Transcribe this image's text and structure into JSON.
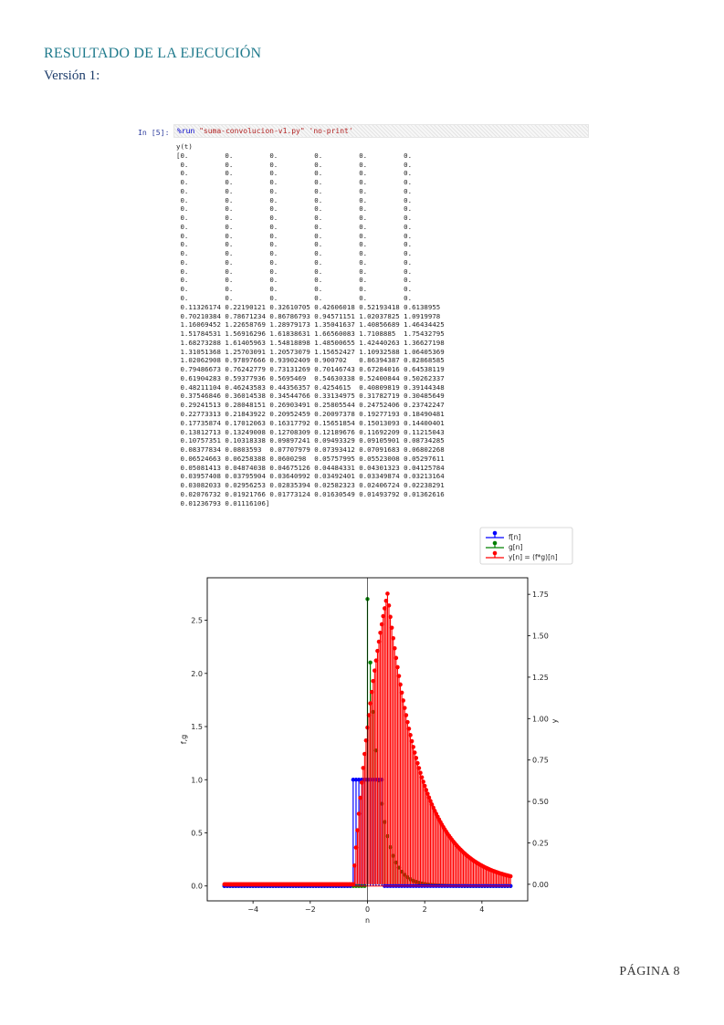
{
  "document": {
    "heading": "RESULTADO DE LA EJECUCIÓN",
    "subheading": "Versión 1:",
    "page_number": "PÁGINA 8"
  },
  "notebook": {
    "prompt": "In [5]:",
    "code": {
      "magic": "%run",
      "args": [
        "\"suma-convolucion-v1.py\"",
        "'no-print'"
      ]
    },
    "output_lines": [
      "y(t)",
      "[0.         0.         0.         0.         0.         0.",
      " 0.         0.         0.         0.         0.         0.",
      " 0.         0.         0.         0.         0.         0.",
      " 0.         0.         0.         0.         0.         0.",
      " 0.         0.         0.         0.         0.         0.",
      " 0.         0.         0.         0.         0.         0.",
      " 0.         0.         0.         0.         0.         0.",
      " 0.         0.         0.         0.         0.         0.",
      " 0.         0.         0.         0.         0.         0.",
      " 0.         0.         0.         0.         0.         0.",
      " 0.         0.         0.         0.         0.         0.",
      " 0.         0.         0.         0.         0.         0.",
      " 0.         0.         0.         0.         0.         0.",
      " 0.         0.         0.         0.         0.         0.",
      " 0.         0.         0.         0.         0.         0.",
      " 0.         0.         0.         0.         0.         0.",
      " 0.         0.         0.         0.         0.         0.",
      " 0.11326174 0.22190121 0.32610705 0.42606018 0.52193418 0.6138955",
      " 0.70210384 0.78671234 0.86786793 0.94571151 1.02037825 1.0919978",
      " 1.16069452 1.22658769 1.28979173 1.35041637 1.40856689 1.46434425",
      " 1.51784531 1.56916296 1.61838631 1.66560083 1.7108885  1.75432795",
      " 1.68273288 1.61405963 1.54818898 1.48500655 1.42440263 1.36627198",
      " 1.31051368 1.25703091 1.20573079 1.15652427 1.10932588 1.06405369",
      " 1.02062908 0.97897666 0.93902409 0.900702   0.86394387 0.82868585",
      " 0.79486673 0.76242779 0.73131269 0.70146743 0.67284016 0.64538119",
      " 0.61904283 0.59377936 0.5695469  0.54630338 0.52400844 0.50262337",
      " 0.48211104 0.46243583 0.44356357 0.4254615  0.40809819 0.39144348",
      " 0.37546846 0.36014538 0.34544766 0.33134975 0.31782719 0.30485649",
      " 0.29241513 0.28048151 0.26903491 0.25805544 0.24752406 0.23742247",
      " 0.22773313 0.21843922 0.20952459 0.20097378 0.19277193 0.18490481",
      " 0.17735874 0.17012063 0.16317792 0.15651854 0.15013093 0.14400401",
      " 0.13812713 0.13249008 0.12708309 0.12189676 0.11692209 0.11215043",
      " 0.10757351 0.10318338 0.09897241 0.09493329 0.09105901 0.08734285",
      " 0.08377834 0.0803593  0.07707979 0.07393412 0.07091683 0.06802268",
      " 0.06524663 0.06258388 0.0600298  0.05757995 0.05523008 0.05297611",
      " 0.05081413 0.04874038 0.04675126 0.04484331 0.04301323 0.04125784",
      " 0.03957408 0.03795904 0.03640992 0.03492401 0.03349874 0.03213164",
      " 0.03082033 0.02956253 0.02835394 0.02582323 0.02406724 0.02238291",
      " 0.02076732 0.01921766 0.01773124 0.01630549 0.01493792 0.01362616",
      " 0.01236793 0.01116106]"
    ]
  },
  "chart_data": {
    "type": "stem",
    "xlabel": "n",
    "ylabel_left": "f,g",
    "ylabel_right": "y",
    "xlim": [
      -5.6,
      5.6
    ],
    "ylim_left": [
      -0.14,
      2.9
    ],
    "ylim_right": [
      -0.1,
      1.85
    ],
    "xticks": [
      -4,
      -2,
      0,
      2,
      4
    ],
    "yticks_left": [
      0.0,
      0.5,
      1.0,
      1.5,
      2.0,
      2.5
    ],
    "yticks_right": [
      0.0,
      0.25,
      0.5,
      0.75,
      1.0,
      1.25,
      1.5,
      1.75
    ],
    "legend_position": "above-right",
    "series": [
      {
        "name": "f[n]",
        "axis": "left",
        "color": "#0000ff",
        "description": "rectangular pulse",
        "x_range": [
          -5,
          5
        ],
        "step": 0.1,
        "on_interval": [
          -0.5,
          0.5
        ],
        "value": 1.0
      },
      {
        "name": "g[n]",
        "axis": "left",
        "color": "#008000",
        "description": "exponential decay",
        "x_range": [
          -5,
          5
        ],
        "step": 0.1,
        "start": 0.0,
        "amplitude": 2.7,
        "decay_rate": 2.5
      },
      {
        "name": "y[n] = (f*g)[n]",
        "axis": "right",
        "color": "#ff0000",
        "x_range": [
          -5,
          5
        ],
        "step": 0.05,
        "nonzero_start_x": -0.45,
        "values_from": "notebook.output_lines"
      }
    ]
  }
}
